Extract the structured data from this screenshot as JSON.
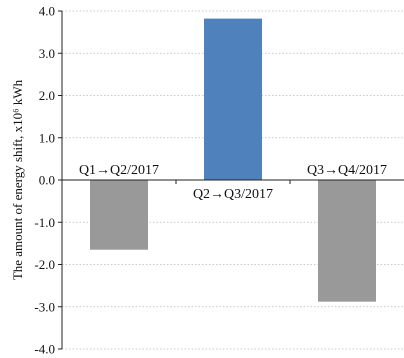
{
  "chart_data": {
    "type": "bar",
    "categories": [
      "Q1→Q2/2017",
      "Q2→Q3/2017",
      "Q3→Q4/2017"
    ],
    "values": [
      -1.65,
      3.82,
      -2.88
    ],
    "colors": [
      "#999999",
      "#4f81bd",
      "#999999"
    ],
    "title": "",
    "xlabel": "",
    "ylabel": "The amount of energy shift, x10⁶ kWh",
    "ylim": [
      -4.0,
      4.0
    ],
    "yticks": [
      4.0,
      3.0,
      2.0,
      1.0,
      0.0,
      -1.0,
      -2.0,
      -3.0,
      -4.0
    ],
    "ytick_labels": [
      "4.0",
      "3.0",
      "2.0",
      "1.0",
      "0.0",
      "-1.0",
      "-2.0",
      "-3.0",
      "-4.0"
    ],
    "grid": true
  }
}
